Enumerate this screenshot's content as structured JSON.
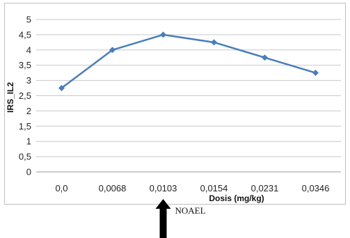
{
  "chart_data": {
    "type": "line",
    "categories": [
      "0,0",
      "0,0068",
      "0,0103",
      "0,0154",
      "0,0231",
      "0,0346"
    ],
    "series": [
      {
        "values": [
          2.75,
          4.0,
          4.5,
          4.25,
          3.75,
          3.25
        ],
        "color": "#4a7ebb"
      }
    ],
    "title": "",
    "xlabel": "Dosis (mg/kg)",
    "ylabel": "IRS_IL2",
    "ylim": [
      0,
      5
    ],
    "yticks": [
      "0",
      "0,5",
      "1",
      "1,5",
      "2",
      "2,5",
      "3",
      "3,5",
      "4",
      "4,5",
      "5"
    ],
    "ytick_values": [
      0,
      0.5,
      1,
      1.5,
      2,
      2.5,
      3,
      3.5,
      4,
      4.5,
      5
    ],
    "grid": true,
    "legend": "none",
    "annotation": {
      "label": "NOAEL",
      "category_index": 2,
      "arrow_color": "#000000"
    }
  }
}
